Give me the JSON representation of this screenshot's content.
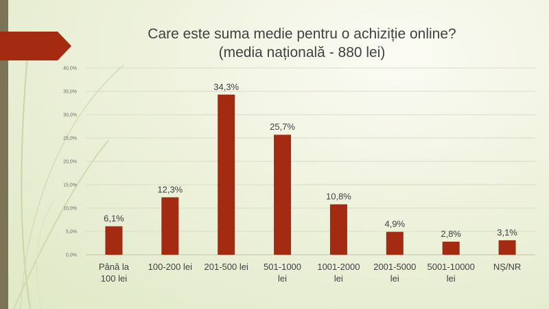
{
  "slide": {
    "title_line1": "Care este suma medie pentru o achiziție online?",
    "title_line2": "(media națională - 880 lei)"
  },
  "colors": {
    "bar": "#a52a12",
    "title_arrow": "#a52a12",
    "accent_bar": "#7a7556",
    "text": "#404040",
    "gridline": "#d7dcc4"
  },
  "chart_data": {
    "type": "bar",
    "categories": [
      [
        "Până la",
        "100 lei"
      ],
      [
        "100-200 lei"
      ],
      [
        "201-500 lei"
      ],
      [
        "501-1000",
        "lei"
      ],
      [
        "1001-2000",
        "lei"
      ],
      [
        "2001-5000",
        "lei"
      ],
      [
        "5001-10000",
        "lei"
      ],
      [
        "NȘ/NR"
      ]
    ],
    "values": [
      6.1,
      12.3,
      34.3,
      25.7,
      10.8,
      4.9,
      2.8,
      3.1
    ],
    "data_labels": [
      "6,1%",
      "12,3%",
      "34,3%",
      "25,7%",
      "10,8%",
      "4,9%",
      "2,8%",
      "3,1%"
    ],
    "ylim": [
      0,
      40
    ],
    "y_ticks": [
      0,
      5,
      10,
      15,
      20,
      25,
      30,
      35,
      40
    ],
    "y_tick_labels": [
      "0,0%",
      "5,0%",
      "10,0%",
      "15,0%",
      "20,0%",
      "25,0%",
      "30,0%",
      "35,0%",
      "40,0%"
    ],
    "grid": true,
    "legend": "none",
    "title": "Care este suma medie pentru o achiziție online? (media națională - 880 lei)",
    "xlabel": "",
    "ylabel": ""
  }
}
